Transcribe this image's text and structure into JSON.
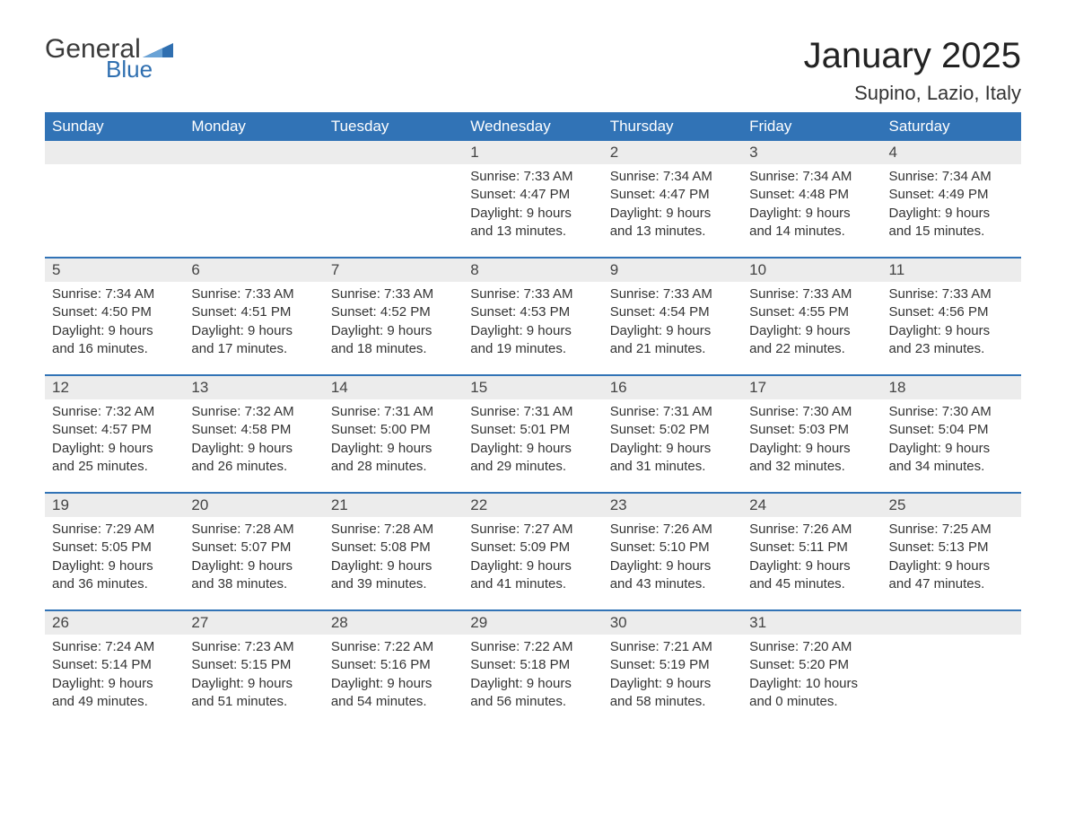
{
  "brand": {
    "word1": "General",
    "word2": "Blue",
    "word1_color": "#3a3a3a",
    "word2_color": "#2f6fb0",
    "triangle_color": "#2f6fb0"
  },
  "title": "January 2025",
  "location": "Supino, Lazio, Italy",
  "colors": {
    "header_bg": "#3173b6",
    "header_text": "#ffffff",
    "daynum_bg": "#ececec",
    "row_border": "#3173b6",
    "body_text": "#333333",
    "page_bg": "#ffffff"
  },
  "weekdays": [
    "Sunday",
    "Monday",
    "Tuesday",
    "Wednesday",
    "Thursday",
    "Friday",
    "Saturday"
  ],
  "labels": {
    "sunrise": "Sunrise:",
    "sunset": "Sunset:",
    "daylight": "Daylight:"
  },
  "weeks": [
    [
      null,
      null,
      null,
      {
        "day": "1",
        "sunrise": "7:33 AM",
        "sunset": "4:47 PM",
        "daylight": "9 hours and 13 minutes."
      },
      {
        "day": "2",
        "sunrise": "7:34 AM",
        "sunset": "4:47 PM",
        "daylight": "9 hours and 13 minutes."
      },
      {
        "day": "3",
        "sunrise": "7:34 AM",
        "sunset": "4:48 PM",
        "daylight": "9 hours and 14 minutes."
      },
      {
        "day": "4",
        "sunrise": "7:34 AM",
        "sunset": "4:49 PM",
        "daylight": "9 hours and 15 minutes."
      }
    ],
    [
      {
        "day": "5",
        "sunrise": "7:34 AM",
        "sunset": "4:50 PM",
        "daylight": "9 hours and 16 minutes."
      },
      {
        "day": "6",
        "sunrise": "7:33 AM",
        "sunset": "4:51 PM",
        "daylight": "9 hours and 17 minutes."
      },
      {
        "day": "7",
        "sunrise": "7:33 AM",
        "sunset": "4:52 PM",
        "daylight": "9 hours and 18 minutes."
      },
      {
        "day": "8",
        "sunrise": "7:33 AM",
        "sunset": "4:53 PM",
        "daylight": "9 hours and 19 minutes."
      },
      {
        "day": "9",
        "sunrise": "7:33 AM",
        "sunset": "4:54 PM",
        "daylight": "9 hours and 21 minutes."
      },
      {
        "day": "10",
        "sunrise": "7:33 AM",
        "sunset": "4:55 PM",
        "daylight": "9 hours and 22 minutes."
      },
      {
        "day": "11",
        "sunrise": "7:33 AM",
        "sunset": "4:56 PM",
        "daylight": "9 hours and 23 minutes."
      }
    ],
    [
      {
        "day": "12",
        "sunrise": "7:32 AM",
        "sunset": "4:57 PM",
        "daylight": "9 hours and 25 minutes."
      },
      {
        "day": "13",
        "sunrise": "7:32 AM",
        "sunset": "4:58 PM",
        "daylight": "9 hours and 26 minutes."
      },
      {
        "day": "14",
        "sunrise": "7:31 AM",
        "sunset": "5:00 PM",
        "daylight": "9 hours and 28 minutes."
      },
      {
        "day": "15",
        "sunrise": "7:31 AM",
        "sunset": "5:01 PM",
        "daylight": "9 hours and 29 minutes."
      },
      {
        "day": "16",
        "sunrise": "7:31 AM",
        "sunset": "5:02 PM",
        "daylight": "9 hours and 31 minutes."
      },
      {
        "day": "17",
        "sunrise": "7:30 AM",
        "sunset": "5:03 PM",
        "daylight": "9 hours and 32 minutes."
      },
      {
        "day": "18",
        "sunrise": "7:30 AM",
        "sunset": "5:04 PM",
        "daylight": "9 hours and 34 minutes."
      }
    ],
    [
      {
        "day": "19",
        "sunrise": "7:29 AM",
        "sunset": "5:05 PM",
        "daylight": "9 hours and 36 minutes."
      },
      {
        "day": "20",
        "sunrise": "7:28 AM",
        "sunset": "5:07 PM",
        "daylight": "9 hours and 38 minutes."
      },
      {
        "day": "21",
        "sunrise": "7:28 AM",
        "sunset": "5:08 PM",
        "daylight": "9 hours and 39 minutes."
      },
      {
        "day": "22",
        "sunrise": "7:27 AM",
        "sunset": "5:09 PM",
        "daylight": "9 hours and 41 minutes."
      },
      {
        "day": "23",
        "sunrise": "7:26 AM",
        "sunset": "5:10 PM",
        "daylight": "9 hours and 43 minutes."
      },
      {
        "day": "24",
        "sunrise": "7:26 AM",
        "sunset": "5:11 PM",
        "daylight": "9 hours and 45 minutes."
      },
      {
        "day": "25",
        "sunrise": "7:25 AM",
        "sunset": "5:13 PM",
        "daylight": "9 hours and 47 minutes."
      }
    ],
    [
      {
        "day": "26",
        "sunrise": "7:24 AM",
        "sunset": "5:14 PM",
        "daylight": "9 hours and 49 minutes."
      },
      {
        "day": "27",
        "sunrise": "7:23 AM",
        "sunset": "5:15 PM",
        "daylight": "9 hours and 51 minutes."
      },
      {
        "day": "28",
        "sunrise": "7:22 AM",
        "sunset": "5:16 PM",
        "daylight": "9 hours and 54 minutes."
      },
      {
        "day": "29",
        "sunrise": "7:22 AM",
        "sunset": "5:18 PM",
        "daylight": "9 hours and 56 minutes."
      },
      {
        "day": "30",
        "sunrise": "7:21 AM",
        "sunset": "5:19 PM",
        "daylight": "9 hours and 58 minutes."
      },
      {
        "day": "31",
        "sunrise": "7:20 AM",
        "sunset": "5:20 PM",
        "daylight": "10 hours and 0 minutes."
      },
      null
    ]
  ]
}
